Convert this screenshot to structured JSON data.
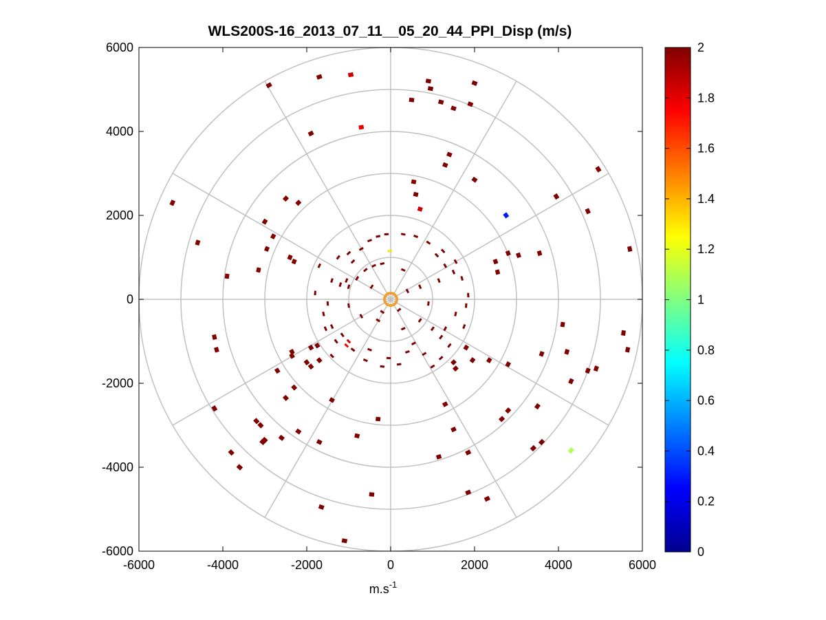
{
  "chart_data": {
    "type": "polar-scatter",
    "title": "WLS200S-16_2013_07_11__05_20_44_PPI_Disp (m/s)",
    "xlabel": "m.s",
    "xlabel_sup": "-1",
    "ylabel": "",
    "xlim": [
      -6000,
      6000
    ],
    "ylim": [
      -6000,
      6000
    ],
    "x_ticks": [
      "-6000",
      "-4000",
      "-2000",
      "0",
      "2000",
      "4000",
      "6000"
    ],
    "y_ticks": [
      "6000",
      "4000",
      "2000",
      "0",
      "-2000",
      "-4000",
      "-6000"
    ],
    "rings": [
      1000,
      2000,
      3000,
      4000,
      5000,
      6000
    ],
    "spokes_deg": [
      0,
      30,
      60,
      90,
      120,
      150
    ],
    "colorbar": {
      "min": 0,
      "max": 2,
      "ticks": [
        "0",
        "0.2",
        "0.4",
        "0.6",
        "0.8",
        "1",
        "1.2",
        "1.4",
        "1.6",
        "1.8",
        "2"
      ],
      "colormap": "jet"
    },
    "points": [
      [
        -1700,
        5300,
        2
      ],
      [
        -950,
        5350,
        1.85
      ],
      [
        -2900,
        5100,
        2
      ],
      [
        900,
        5200,
        2
      ],
      [
        950,
        5020,
        2
      ],
      [
        2000,
        5150,
        2
      ],
      [
        500,
        4750,
        2
      ],
      [
        1200,
        4700,
        2
      ],
      [
        1500,
        4550,
        2
      ],
      [
        1900,
        4650,
        2
      ],
      [
        -700,
        4100,
        1.8
      ],
      [
        -1900,
        3950,
        2
      ],
      [
        1400,
        3450,
        2
      ],
      [
        1300,
        3200,
        2
      ],
      [
        2000,
        2850,
        2
      ],
      [
        4950,
        3100,
        2
      ],
      [
        3950,
        2450,
        2
      ],
      [
        4700,
        2100,
        2
      ],
      [
        2750,
        2000,
        0.3
      ],
      [
        550,
        2800,
        2
      ],
      [
        600,
        2500,
        2
      ],
      [
        700,
        2150,
        1.85
      ],
      [
        -5200,
        2300,
        2
      ],
      [
        -2500,
        2400,
        2
      ],
      [
        -2200,
        2300,
        2
      ],
      [
        -3000,
        1850,
        2
      ],
      [
        -2800,
        1500,
        2
      ],
      [
        -2950,
        1200,
        2
      ],
      [
        -4600,
        1350,
        2
      ],
      [
        -2400,
        1000,
        2
      ],
      [
        -2300,
        900,
        2
      ],
      [
        -3900,
        550,
        2
      ],
      [
        -3150,
        700,
        2
      ],
      [
        2500,
        900,
        2
      ],
      [
        2800,
        1100,
        2
      ],
      [
        2550,
        650,
        2
      ],
      [
        3050,
        1050,
        2
      ],
      [
        3550,
        1100,
        2
      ],
      [
        5700,
        1200,
        2
      ],
      [
        5550,
        -800,
        2
      ],
      [
        5650,
        -1200,
        2
      ],
      [
        4100,
        -600,
        2
      ],
      [
        4200,
        -1250,
        2
      ],
      [
        3600,
        -1300,
        2
      ],
      [
        4900,
        -1650,
        2
      ],
      [
        4700,
        -1700,
        2
      ],
      [
        4300,
        -1950,
        2
      ],
      [
        3500,
        -2550,
        2
      ],
      [
        2800,
        -2650,
        2
      ],
      [
        2650,
        -2850,
        2
      ],
      [
        3400,
        -3550,
        2
      ],
      [
        3600,
        -3400,
        2
      ],
      [
        4300,
        -3600,
        1.1
      ],
      [
        2800,
        -1550,
        2
      ],
      [
        2350,
        -1450,
        2
      ],
      [
        1950,
        -1450,
        2
      ],
      [
        1550,
        -1650,
        2
      ],
      [
        1500,
        -1500,
        2
      ],
      [
        1200,
        -1400,
        2
      ],
      [
        1000,
        -1600,
        2
      ],
      [
        1300,
        -2500,
        2
      ],
      [
        1500,
        -3100,
        2
      ],
      [
        1850,
        -3650,
        2
      ],
      [
        1150,
        -3750,
        2
      ],
      [
        1850,
        -4600,
        2
      ],
      [
        2300,
        -4750,
        2
      ],
      [
        -450,
        -4650,
        2
      ],
      [
        -1650,
        -4950,
        2
      ],
      [
        -1100,
        -5750,
        2
      ],
      [
        -2700,
        -1700,
        2
      ],
      [
        -2350,
        -1350,
        2
      ],
      [
        -2000,
        -1500,
        2
      ],
      [
        -1900,
        -1600,
        2
      ],
      [
        -1700,
        -1450,
        2
      ],
      [
        -1400,
        -1350,
        2
      ],
      [
        -2300,
        -2100,
        2
      ],
      [
        -2500,
        -2350,
        2
      ],
      [
        -4200,
        -2600,
        2
      ],
      [
        -3200,
        -2900,
        2
      ],
      [
        -3100,
        -3000,
        2
      ],
      [
        -3050,
        -3400,
        2
      ],
      [
        -3000,
        -3350,
        2
      ],
      [
        -2600,
        -3300,
        2
      ],
      [
        -2200,
        -3150,
        2
      ],
      [
        -1700,
        -3400,
        2
      ],
      [
        -3800,
        -3650,
        2
      ],
      [
        -3600,
        -4000,
        2
      ],
      [
        -4200,
        -900,
        2
      ],
      [
        -4150,
        -1200,
        2
      ],
      [
        -1400,
        -2400,
        2
      ],
      [
        -800,
        -3250,
        2
      ],
      [
        -300,
        -2850,
        2
      ],
      [
        -2350,
        -1250,
        2
      ],
      [
        -1900,
        -1150,
        2
      ],
      [
        -1300,
        -1000,
        2
      ],
      [
        -1000,
        -1000,
        1.85
      ],
      [
        -1400,
        450,
        2
      ],
      [
        -1200,
        350,
        2
      ],
      [
        -1000,
        300,
        2
      ],
      [
        -1800,
        150,
        2
      ],
      [
        -1500,
        -100,
        2
      ],
      [
        -1000,
        -150,
        2
      ],
      [
        -800,
        500,
        2
      ],
      [
        -600,
        700,
        2
      ],
      [
        -400,
        800,
        2
      ],
      [
        -700,
        1200,
        2
      ],
      [
        -500,
        1400,
        2
      ],
      [
        -300,
        1500,
        2
      ],
      [
        -100,
        1550,
        2
      ],
      [
        300,
        1550,
        2
      ],
      [
        600,
        1500,
        2
      ],
      [
        900,
        1350,
        2
      ],
      [
        1100,
        1050,
        2
      ],
      [
        1300,
        800,
        2
      ],
      [
        1150,
        450,
        2
      ],
      [
        1500,
        650,
        2
      ],
      [
        1700,
        500,
        2
      ],
      [
        1850,
        100,
        2
      ],
      [
        1800,
        -150,
        2
      ],
      [
        1550,
        -350,
        2
      ],
      [
        1300,
        -700,
        2
      ],
      [
        1200,
        -900,
        2
      ],
      [
        800,
        -1300,
        2
      ],
      [
        550,
        -1050,
        2
      ],
      [
        200,
        -1550,
        2
      ],
      [
        -200,
        -1600,
        2
      ],
      [
        -600,
        -1450,
        2
      ],
      [
        -900,
        -1200,
        2
      ],
      [
        -1150,
        -850,
        2
      ],
      [
        -1400,
        -650,
        2
      ],
      [
        -1600,
        -350,
        2
      ],
      [
        -1050,
        450,
        2
      ],
      [
        -700,
        -400,
        2
      ],
      [
        -300,
        -500,
        2
      ],
      [
        300,
        -700,
        2
      ],
      [
        700,
        -500,
        2
      ],
      [
        900,
        -100,
        2
      ],
      [
        700,
        300,
        2
      ],
      [
        300,
        700,
        2
      ],
      [
        -200,
        850,
        2
      ],
      [
        -450,
        300,
        2
      ],
      [
        -200,
        -300,
        2
      ],
      [
        400,
        200,
        2
      ],
      [
        200,
        -250,
        2
      ],
      [
        -900,
        900,
        2
      ],
      [
        1000,
        -700,
        2
      ],
      [
        -1700,
        800,
        2
      ],
      [
        -1550,
        -700,
        2
      ],
      [
        1550,
        900,
        2
      ],
      [
        -20,
        1150,
        1.3
      ],
      [
        -1050,
        -1100,
        1.75
      ],
      [
        1800,
        -1150,
        2
      ],
      [
        -1000,
        1100,
        2
      ],
      [
        1400,
        -1100,
        2
      ],
      [
        -500,
        -1200,
        2
      ],
      [
        400,
        -1250,
        2
      ],
      [
        -1250,
        1000,
        2
      ],
      [
        1250,
        1150,
        2
      ],
      [
        -50,
        -1400,
        2
      ],
      [
        -1750,
        -1100,
        2
      ],
      [
        1750,
        -650,
        2
      ]
    ]
  }
}
